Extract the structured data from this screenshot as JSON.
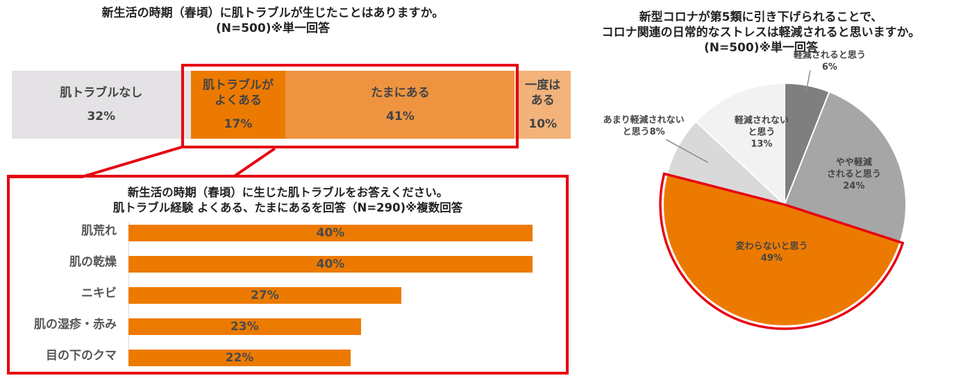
{
  "colors": {
    "orange_dark": "#ec7a00",
    "orange_mid": "#ee9440",
    "orange_light": "#f2b27a",
    "gray_light": "#e5e2e6",
    "highlight_red": "#e60012"
  },
  "stacked_title": [
    "新生活の時期（春頃）に肌トラブルが生じたことはありますか。",
    "(N=500)※単一回答"
  ],
  "bar_title": [
    "新生活の時期（春頃）に生じた肌トラブルをお答えください。",
    "肌トラブル経験 よくある、たまにあるを回答（N=290)※複数回答"
  ],
  "pie_title": [
    "新型コロナが第5類に引き下げられることで、",
    "コロナ関連の日常的なストレスは軽減されると思いますか。",
    "(N=500)※単一回答"
  ],
  "chart_data": [
    {
      "type": "bar",
      "orientation": "horizontal-stacked",
      "categories": [
        "肌トラブルなし",
        "肌トラブルがよくある",
        "たまにある",
        "一度はある"
      ],
      "display_labels": [
        "肌トラブルなし",
        "肌トラブルが\nよくある",
        "たまにある",
        "一度は\nある"
      ],
      "value_labels": [
        "32%",
        "17%",
        "41%",
        "10%"
      ],
      "values": [
        32,
        17,
        41,
        10
      ],
      "colors": [
        "#e5e2e6",
        "#ec7a00",
        "#ee9440",
        "#f2b27a"
      ]
    },
    {
      "type": "bar",
      "orientation": "horizontal",
      "categories": [
        "肌荒れ",
        "肌の乾燥",
        "ニキビ",
        "肌の湿疹・赤み",
        "目の下のクマ"
      ],
      "display_labels": [
        "肌荒れ",
        "肌の乾燥",
        "ニキビ",
        "肌の湿疹・赤み",
        "目の下のクマ"
      ],
      "values": [
        40,
        40,
        27,
        23,
        22
      ],
      "value_labels": [
        "40%",
        "40%",
        "27%",
        "23%",
        "22%"
      ],
      "color": "#ec7a00"
    },
    {
      "type": "pie",
      "categories": [
        "軽減されると思う",
        "やや軽減されると思う",
        "変わらないと思う",
        "あまり軽減されないと思う",
        "軽減されないと思う"
      ],
      "display_labels": [
        "軽減されると思う",
        "やや軽減\nされると思う",
        "変わらないと思う",
        "あまり軽減されない\nと思う8%",
        "軽減されない\nと思う"
      ],
      "values": [
        6,
        24,
        49,
        8,
        13
      ],
      "value_labels": [
        "6%",
        "24%",
        "49%",
        "",
        "13%"
      ],
      "colors": [
        "#7f7f7f",
        "#a6a6a6",
        "#ec7a00",
        "#d9d9d9",
        "#f2f2f2"
      ]
    }
  ]
}
